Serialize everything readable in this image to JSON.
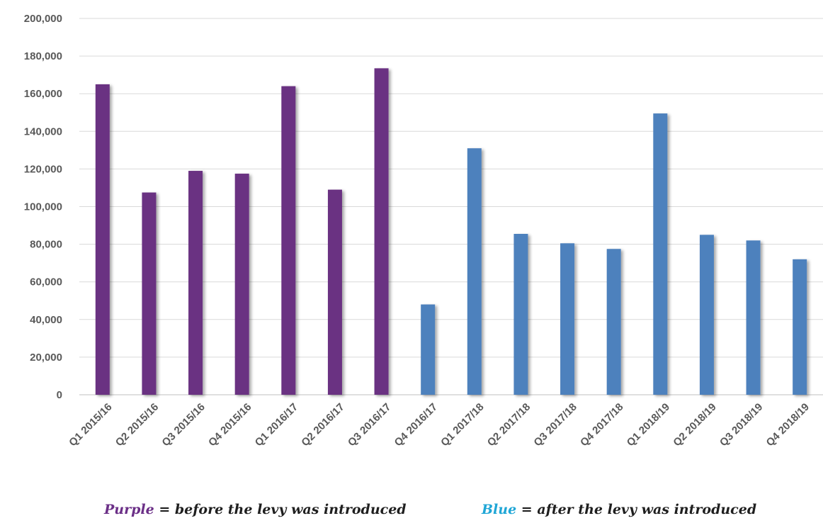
{
  "chart_data": {
    "type": "bar",
    "categories": [
      "Q1 2015/16",
      "Q2 2015/16",
      "Q3 2015/16",
      "Q4 2015/16",
      "Q1 2016/17",
      "Q2 2016/17",
      "Q3 2016/17",
      "Q4 2016/17",
      "Q1 2017/18",
      "Q2 2017/18",
      "Q3 2017/18",
      "Q4 2017/18",
      "Q1 2018/19",
      "Q2 2018/19",
      "Q3 2018/19",
      "Q4 2018/19"
    ],
    "values": [
      165000,
      107500,
      119000,
      117500,
      164000,
      109000,
      173500,
      48000,
      131000,
      85500,
      80500,
      77500,
      149500,
      85000,
      82000,
      72000
    ],
    "bar_groups": [
      "purple",
      "purple",
      "purple",
      "purple",
      "purple",
      "purple",
      "purple",
      "blue",
      "blue",
      "blue",
      "blue",
      "blue",
      "blue",
      "blue",
      "blue",
      "blue"
    ],
    "colors": {
      "purple": "#6a3282",
      "blue": "#4e81bd",
      "gridline": "#d9d9d9",
      "tick_text": "#595959"
    },
    "ylim": [
      0,
      200000
    ],
    "yticks": [
      0,
      20000,
      40000,
      60000,
      80000,
      100000,
      120000,
      140000,
      160000,
      180000,
      200000
    ],
    "ytick_labels": [
      "0",
      "20,000",
      "40,000",
      "60,000",
      "80,000",
      "100,000",
      "120,000",
      "140,000",
      "160,000",
      "180,000",
      "200,000"
    ],
    "grid": true,
    "title": "",
    "xlabel": "",
    "ylabel": ""
  },
  "legend": {
    "purple_key": "Purple",
    "purple_text": " = before the levy was introduced",
    "blue_key": "Blue",
    "blue_text": " = after the levy was introduced"
  }
}
